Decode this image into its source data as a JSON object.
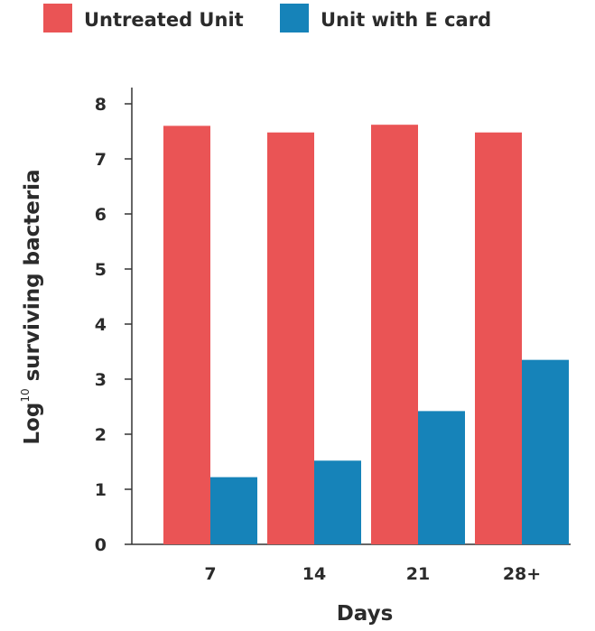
{
  "chart_data": {
    "type": "bar",
    "categories": [
      "7",
      "14",
      "21",
      "28+"
    ],
    "series": [
      {
        "name": "Untreated Unit",
        "color": "#ea5455",
        "values": [
          7.6,
          7.48,
          7.62,
          7.48
        ]
      },
      {
        "name": "Unit with E card",
        "color": "#1683b9",
        "values": [
          1.22,
          1.52,
          2.42,
          3.35
        ]
      }
    ],
    "xlabel": "Days",
    "ylabel": {
      "prefix": "Log",
      "superscript": "10",
      "rest": " surviving bacteria"
    },
    "yticks": [
      "0",
      "1",
      "2",
      "3",
      "4",
      "5",
      "6",
      "7",
      "8"
    ],
    "ylim": [
      0,
      8.3
    ],
    "legend_position": "top-left",
    "grid": false
  }
}
